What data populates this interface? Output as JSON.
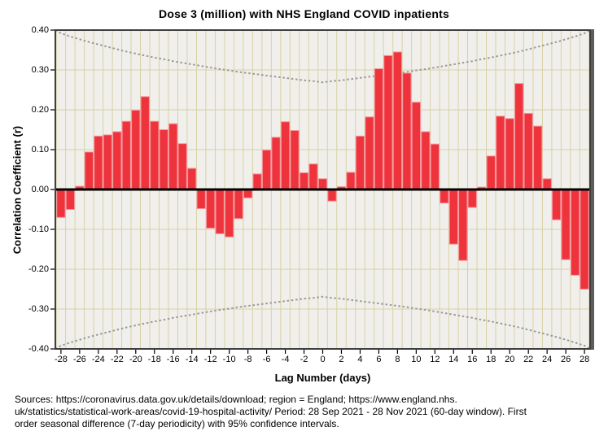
{
  "title": "Dose 3 (million) with NHS England COVID inpatients",
  "chart_data": {
    "type": "bar",
    "title": "Dose 3 (million) with NHS England COVID inpatients",
    "xlabel": "Lag Number (days)",
    "ylabel": "Correlation Coefficient (r)",
    "xlim": [
      -28.6,
      28.6
    ],
    "ylim": [
      -0.4,
      0.4
    ],
    "grid": true,
    "legend": false,
    "y_ticks": [
      "0.40",
      "0.30",
      "0.20",
      "0.10",
      "0.00",
      "-0.10",
      "-0.20",
      "-0.30",
      "-0.40"
    ],
    "x_ticks": [
      -28,
      -26,
      -24,
      -22,
      -20,
      -18,
      -16,
      -14,
      -12,
      -10,
      -8,
      -6,
      -4,
      -2,
      0,
      2,
      4,
      6,
      8,
      10,
      12,
      14,
      16,
      18,
      20,
      22,
      24,
      26,
      28
    ],
    "lags": [
      -28,
      -27,
      -26,
      -25,
      -24,
      -23,
      -22,
      -21,
      -20,
      -19,
      -18,
      -17,
      -16,
      -15,
      -14,
      -13,
      -12,
      -11,
      -10,
      -9,
      -8,
      -7,
      -6,
      -5,
      -4,
      -3,
      -2,
      -1,
      0,
      1,
      2,
      3,
      4,
      5,
      6,
      7,
      8,
      9,
      10,
      11,
      12,
      13,
      14,
      15,
      16,
      17,
      18,
      19,
      20,
      21,
      22,
      23,
      24,
      25,
      26,
      27,
      28
    ],
    "values": [
      -0.07,
      -0.05,
      0.008,
      0.094,
      0.134,
      0.137,
      0.145,
      0.171,
      0.199,
      0.233,
      0.171,
      0.15,
      0.165,
      0.115,
      0.053,
      -0.048,
      -0.097,
      -0.111,
      -0.119,
      -0.073,
      -0.021,
      0.039,
      0.099,
      0.131,
      0.17,
      0.148,
      0.042,
      0.064,
      0.027,
      -0.029,
      0.007,
      0.043,
      0.134,
      0.182,
      0.303,
      0.336,
      0.345,
      0.292,
      0.219,
      0.145,
      0.114,
      -0.034,
      -0.137,
      -0.178,
      -0.045,
      0.006,
      0.084,
      0.184,
      0.178,
      0.266,
      0.191,
      0.159,
      0.027,
      -0.076,
      -0.176,
      -0.215,
      -0.25
    ],
    "confidence_interval": {
      "level": "95%",
      "upper": [
        0.392,
        0.384,
        0.377,
        0.37,
        0.364,
        0.358,
        0.352,
        0.346,
        0.341,
        0.336,
        0.331,
        0.327,
        0.322,
        0.318,
        0.314,
        0.31,
        0.306,
        0.302,
        0.299,
        0.295,
        0.292,
        0.289,
        0.286,
        0.283,
        0.28,
        0.277,
        0.274,
        0.272,
        0.269,
        0.272,
        0.274,
        0.277,
        0.28,
        0.283,
        0.286,
        0.289,
        0.292,
        0.295,
        0.299,
        0.302,
        0.306,
        0.31,
        0.314,
        0.318,
        0.322,
        0.327,
        0.331,
        0.336,
        0.341,
        0.346,
        0.352,
        0.358,
        0.364,
        0.37,
        0.377,
        0.384,
        0.392
      ]
    }
  },
  "footer": {
    "lines": [
      "Sources: https://coronavirus.data.gov.uk/details/download; region = England; https://www.england.nhs.",
      "uk/statistics/statistical-work-areas/covid-19-hospital-activity/ Period: 28 Sep 2021 - 28 Nov 2021 (60-day window). First",
      "order seasonal difference (7-day periodicity) with 95% confidence intervals."
    ]
  },
  "colors": {
    "bar_fill": "#ee333d",
    "bar_edge": "#f4949b",
    "plot_bg": "#f0efec",
    "gridline": "#d8d2a4",
    "zero_line": "#000000",
    "ci_line": "#9a9a9a",
    "frame": "#3f3f3f",
    "frame_shadow": "#5c5c5c",
    "text": "#000000"
  }
}
